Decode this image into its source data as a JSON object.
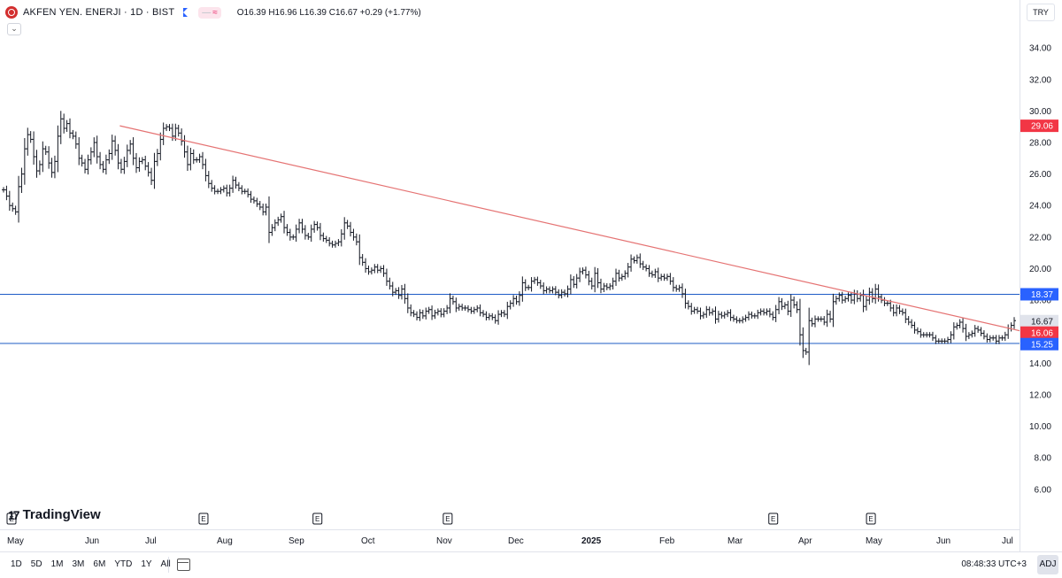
{
  "header": {
    "symbol": "AKFEN YEN. ENERJI · 1D · BIST",
    "ohlc": "O16.39 H16.96 L16.39 C16.67 +0.29 (+1.77%)",
    "indicator_pill": "≈",
    "collapse_glyph": "⌄"
  },
  "currency": "TRY",
  "brand": {
    "mark": "17",
    "name": "TradingView"
  },
  "colors": {
    "bars": "#131722",
    "trendline": "#e57373",
    "hline": "#1e5bc6",
    "price_red": "#f23645",
    "price_blue": "#2962ff",
    "last_price_bg": "#e0e3eb"
  },
  "chart_data": {
    "type": "ohlc",
    "ylim": [
      5.2,
      35.3
    ],
    "yticks": [
      "34.00",
      "32.00",
      "30.00",
      "28.00",
      "26.00",
      "24.00",
      "22.00",
      "20.00",
      "18.00",
      "16.00",
      "14.00",
      "12.00",
      "10.00",
      "8.00",
      "6.00"
    ],
    "xlabels": [
      "May",
      "Jun",
      "Jul",
      "Aug",
      "Sep",
      "Oct",
      "Nov",
      "Dec",
      "2025",
      "Feb",
      "Mar",
      "Apr",
      "May",
      "Jun",
      "Jul"
    ],
    "x_bold_label": "2025",
    "price_labels": [
      {
        "value": 29.06,
        "text": "29.06",
        "style": "red"
      },
      {
        "value": 18.37,
        "text": "18.37",
        "style": "blue"
      },
      {
        "value": 16.67,
        "text": "16.67",
        "style": "last"
      },
      {
        "value": 16.06,
        "text": "16.06",
        "style": "red"
      },
      {
        "value": 15.25,
        "text": "15.25",
        "style": "blue"
      }
    ],
    "horizontal_lines": [
      18.37,
      15.25
    ],
    "trendline": {
      "start": {
        "date": "2024-06-20",
        "value": 29.06
      },
      "end_value_at_axis": 16.06
    },
    "event_markers": {
      "glyph": "E",
      "dates": [
        "2024-07-26",
        "2024-09-13",
        "2024-11-08",
        "2025-03-28",
        "2025-05-09"
      ]
    },
    "close_series": [
      25.0,
      24.6,
      24.0,
      23.8,
      23.6,
      25.2,
      26.0,
      27.6,
      28.5,
      28.2,
      27.1,
      26.2,
      26.6,
      27.6,
      27.4,
      26.7,
      26.1,
      26.8,
      28.4,
      29.5,
      28.9,
      29.2,
      28.6,
      28.4,
      27.9,
      27.0,
      26.7,
      26.3,
      26.9,
      27.4,
      28.0,
      27.1,
      26.6,
      26.3,
      26.9,
      27.3,
      28.1,
      27.5,
      26.7,
      26.3,
      26.8,
      27.5,
      27.9,
      27.0,
      26.4,
      26.8,
      26.9,
      26.5,
      26.1,
      25.6,
      26.8,
      27.3,
      28.2,
      28.9,
      29.0,
      28.9,
      28.4,
      28.9,
      28.6,
      28.1,
      27.4,
      26.6,
      27.3,
      26.9,
      26.9,
      27.1,
      26.6,
      25.9,
      25.4,
      25.1,
      24.9,
      24.9,
      25.0,
      25.1,
      24.8,
      25.1,
      25.6,
      25.3,
      25.1,
      24.9,
      24.9,
      24.7,
      24.4,
      24.3,
      24.1,
      23.9,
      23.6,
      23.9,
      22.3,
      22.6,
      22.9,
      23.1,
      23.3,
      22.6,
      22.3,
      22.0,
      22.0,
      22.5,
      22.9,
      22.5,
      22.1,
      22.0,
      22.5,
      22.8,
      22.6,
      22.1,
      21.9,
      21.8,
      21.6,
      21.5,
      21.6,
      21.7,
      22.2,
      22.9,
      22.7,
      22.3,
      22.0,
      21.7,
      20.7,
      20.4,
      20.0,
      19.8,
      19.9,
      20.1,
      19.9,
      20.0,
      19.7,
      19.2,
      18.9,
      18.5,
      18.6,
      18.3,
      18.7,
      18.1,
      17.5,
      17.2,
      17.1,
      16.9,
      17.2,
      17.0,
      17.3,
      17.4,
      17.0,
      17.2,
      17.3,
      17.1,
      17.3,
      17.5,
      18.1,
      17.9,
      17.5,
      17.6,
      17.5,
      17.5,
      17.4,
      17.3,
      17.4,
      17.5,
      17.2,
      17.1,
      16.9,
      17.0,
      16.9,
      16.7,
      17.1,
      17.2,
      17.1,
      17.6,
      17.8,
      18.1,
      17.9,
      18.3,
      19.1,
      18.8,
      18.8,
      19.2,
      19.3,
      19.1,
      18.9,
      18.6,
      18.7,
      18.6,
      18.7,
      18.5,
      18.3,
      18.5,
      18.4,
      18.7,
      19.3,
      19.0,
      19.4,
      19.8,
      19.9,
      19.6,
      19.2,
      18.9,
      19.7,
      19.1,
      18.7,
      18.9,
      18.8,
      18.9,
      19.2,
      19.7,
      19.4,
      19.5,
      19.7,
      20.1,
      20.6,
      20.5,
      20.7,
      20.3,
      20.1,
      20.0,
      19.7,
      19.6,
      19.8,
      19.4,
      19.5,
      19.4,
      19.5,
      19.2,
      18.8,
      18.7,
      18.8,
      18.4,
      17.8,
      17.6,
      17.3,
      17.4,
      17.3,
      17.0,
      17.1,
      17.4,
      17.2,
      17.3,
      16.8,
      17.1,
      17.0,
      17.1,
      17.2,
      16.9,
      16.8,
      16.7,
      16.7,
      16.8,
      16.9,
      17.1,
      17.0,
      17.0,
      17.2,
      17.3,
      17.2,
      17.3,
      17.1,
      16.9,
      17.4,
      17.9,
      17.6,
      17.7,
      17.3,
      18.0,
      17.7,
      17.4,
      15.8,
      14.8,
      14.7,
      16.7,
      16.5,
      16.8,
      16.8,
      16.8,
      16.6,
      17.1,
      16.8,
      17.9,
      18.1,
      18.3,
      18.0,
      18.1,
      18.3,
      18.0,
      18.4,
      18.1,
      18.3,
      17.6,
      18.0,
      18.5,
      18.1,
      18.7,
      18.2,
      18.0,
      17.8,
      17.8,
      17.5,
      17.2,
      17.5,
      17.3,
      17.2,
      16.8,
      16.6,
      16.4,
      16.1,
      16.0,
      15.8,
      15.8,
      15.8,
      15.8,
      15.6,
      15.4,
      15.4,
      15.4,
      15.4,
      15.5,
      15.8,
      16.3,
      16.4,
      16.6,
      16.2,
      15.7,
      15.8,
      15.9,
      16.2,
      16.1,
      15.9,
      15.7,
      15.5,
      15.6,
      15.6,
      15.4,
      15.6,
      15.6,
      15.8,
      16.2,
      16.4,
      16.7
    ]
  },
  "bottom": {
    "ranges": [
      "1D",
      "5D",
      "1M",
      "3M",
      "6M",
      "YTD",
      "1Y",
      "All"
    ],
    "time": "08:48:33 UTC+3",
    "adj": "ADJ"
  }
}
